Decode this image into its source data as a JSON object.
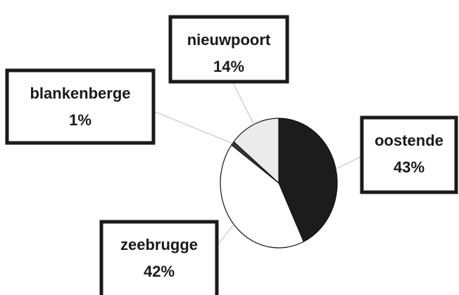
{
  "chart_data": {
    "type": "pie",
    "categories": [
      "oostende",
      "zeebrugge",
      "blankenberge",
      "nieuwpoort"
    ],
    "values": [
      43,
      42,
      1,
      14
    ],
    "value_labels": [
      "43%",
      "42%",
      "1%",
      "14%"
    ],
    "colors": [
      "#1c1c1c",
      "#ffffff",
      "#3a3a3a",
      "#ebebeb"
    ]
  }
}
